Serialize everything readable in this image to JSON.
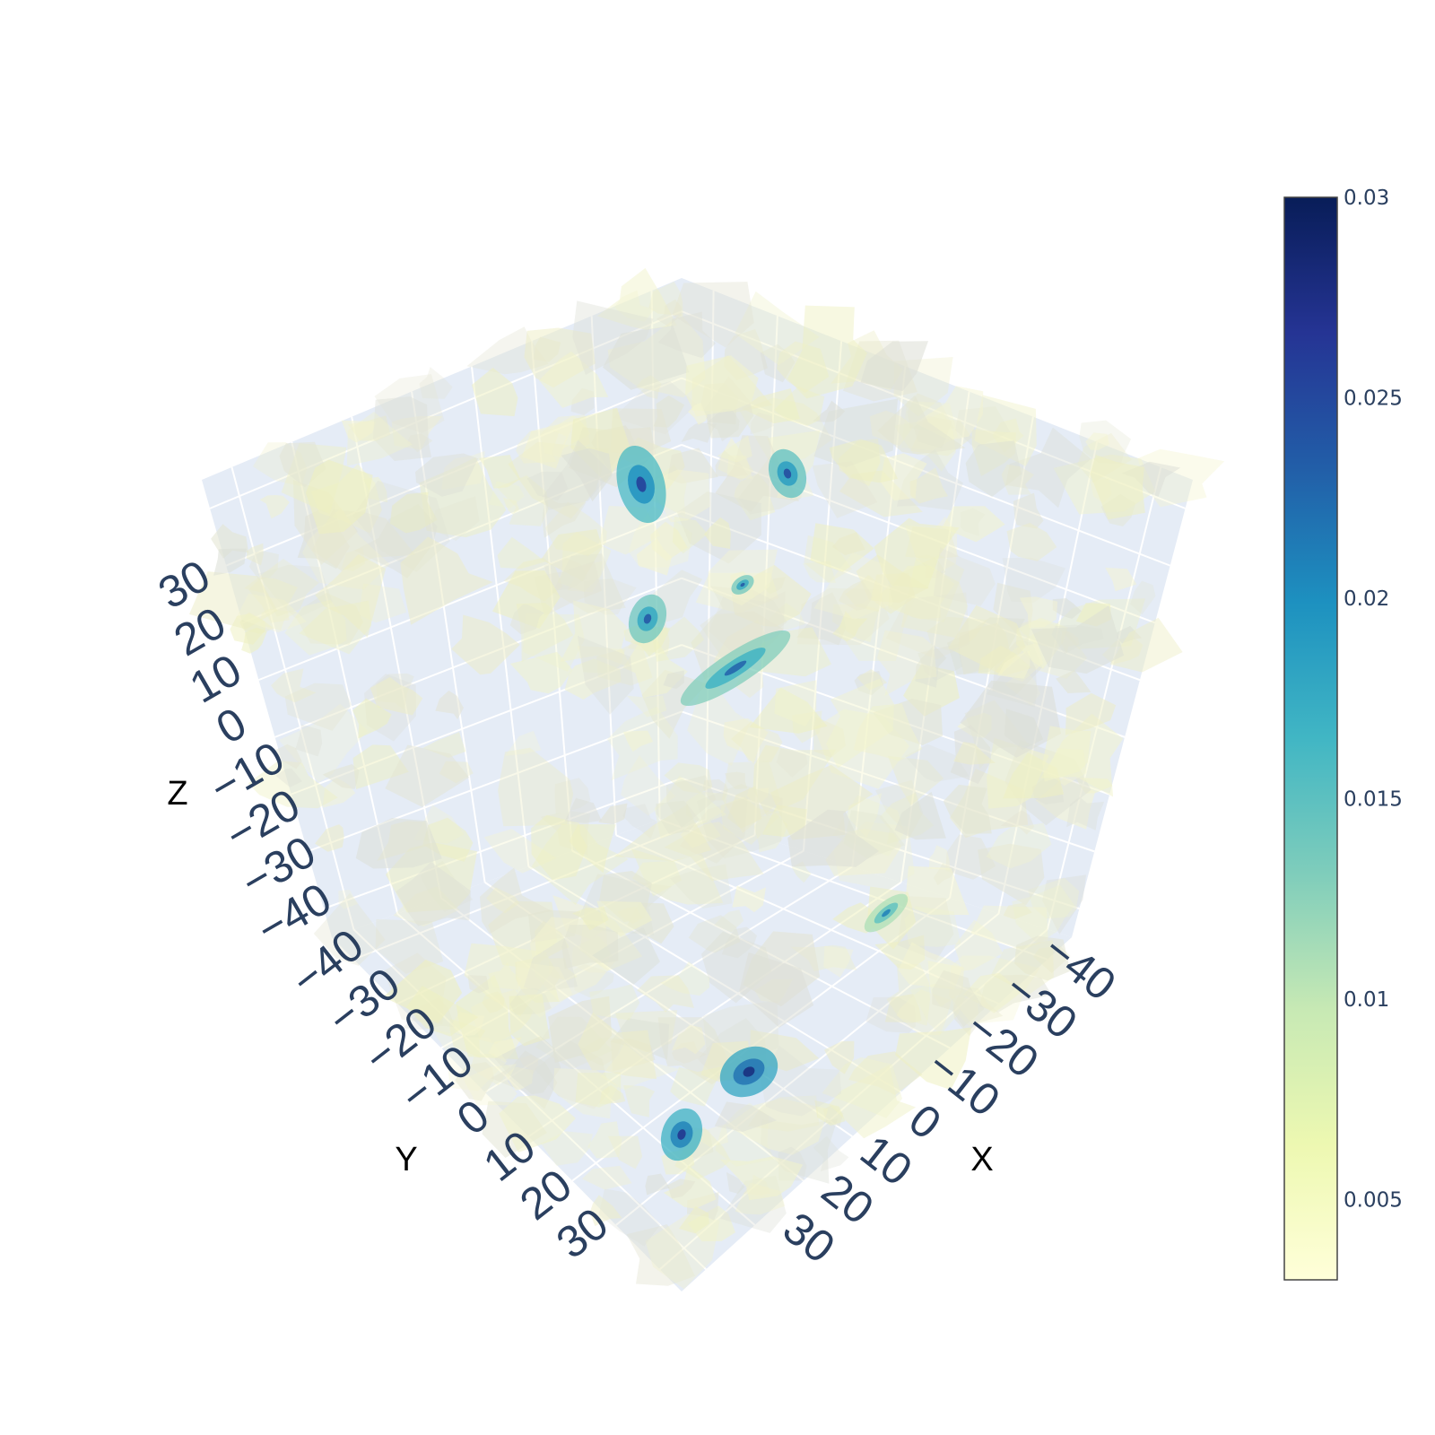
{
  "chart_data": {
    "type": "isosurface-3d",
    "axes": {
      "x": {
        "title": "X",
        "ticks": [
          "−40",
          "−30",
          "−20",
          "−10",
          "0",
          "10",
          "20",
          "30"
        ],
        "range": [
          -45,
          35
        ]
      },
      "y": {
        "title": "Y",
        "ticks": [
          "−40",
          "−30",
          "−20",
          "−10",
          "0",
          "10",
          "20",
          "30"
        ],
        "range": [
          -45,
          35
        ]
      },
      "z": {
        "title": "Z",
        "ticks": [
          "−40",
          "−30",
          "−20",
          "−10",
          "0",
          "10",
          "20",
          "30"
        ],
        "range": [
          -45,
          35
        ]
      }
    },
    "grid": true,
    "colorscale": {
      "name": "YlGnBu",
      "range": [
        0.003,
        0.03
      ],
      "ticks": [
        "0.005",
        "0.01",
        "0.015",
        "0.02",
        "0.025",
        "0.03"
      ],
      "stops": [
        "#ffffd9",
        "#edf8b1",
        "#c7e9b4",
        "#7fcdbb",
        "#41b6c4",
        "#1d91c0",
        "#225ea8",
        "#253494",
        "#081d58"
      ]
    },
    "colorbar_position": "right",
    "notable_blobs": [
      {
        "location": "upper-back",
        "value": 0.02
      },
      {
        "location": "upper-right",
        "value": 0.019
      },
      {
        "location": "center-upper",
        "value": 0.018
      },
      {
        "location": "center",
        "value": 0.017
      },
      {
        "location": "lower-front",
        "value": 0.022
      },
      {
        "location": "lower-front-left",
        "value": 0.021
      },
      {
        "location": "lower-right",
        "value": 0.015
      }
    ]
  }
}
